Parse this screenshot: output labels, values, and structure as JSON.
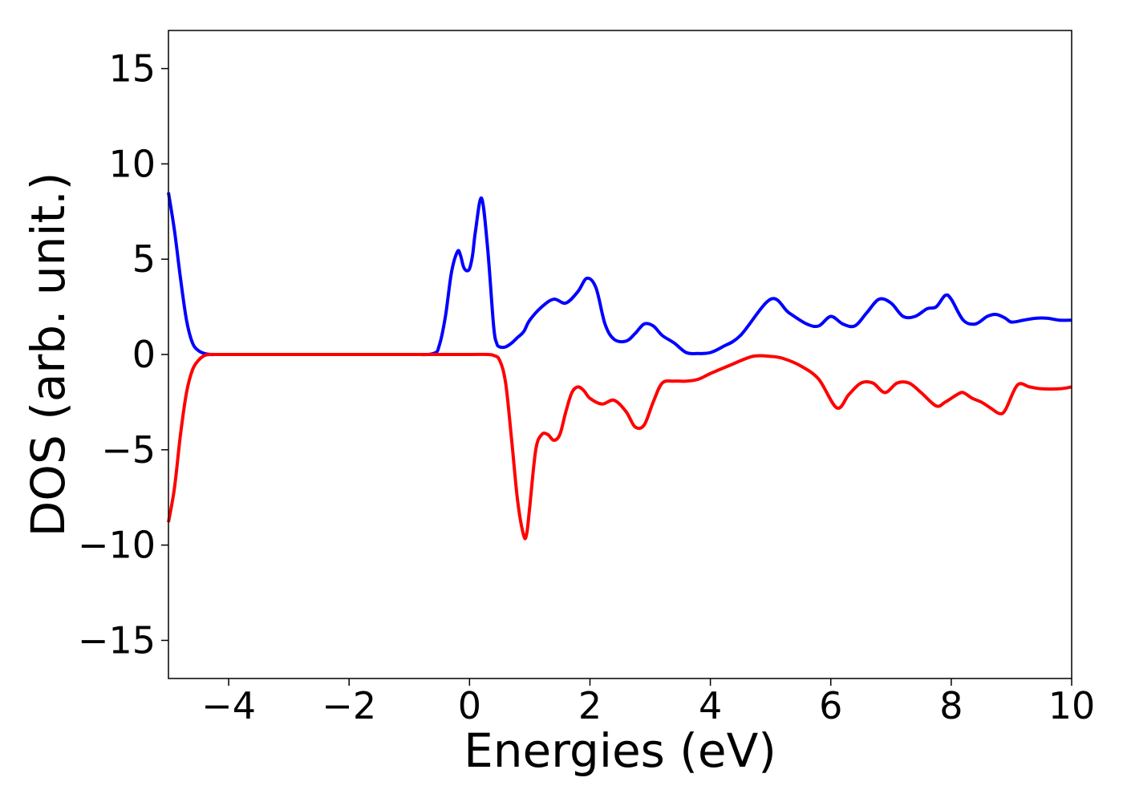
{
  "chart_data": {
    "type": "line",
    "title": "",
    "xlabel": "Energies (eV)",
    "ylabel": "DOS (arb. unit.)",
    "xlim": [
      -5,
      10
    ],
    "ylim": [
      -17,
      17
    ],
    "grid": false,
    "x_ticks": [
      -4,
      -2,
      0,
      2,
      4,
      6,
      8,
      10
    ],
    "x_tick_labels": [
      "−4",
      "−2",
      "0",
      "2",
      "4",
      "6",
      "8",
      "10"
    ],
    "y_ticks": [
      15,
      10,
      5,
      0,
      -5,
      -10,
      -15
    ],
    "y_tick_labels": [
      "15",
      "10",
      "5",
      "0",
      "−5",
      "−10",
      "−15"
    ],
    "series": [
      {
        "color": "#0000ff",
        "x": [
          -5.0,
          -4.9,
          -4.8,
          -4.7,
          -4.6,
          -4.5,
          -4.4,
          -4.3,
          -4.2,
          -4.0,
          -3.0,
          -2.0,
          -1.0,
          -0.6,
          -0.5,
          -0.4,
          -0.3,
          -0.2,
          -0.15,
          -0.1,
          -0.05,
          0.0,
          0.05,
          0.1,
          0.2,
          0.3,
          0.4,
          0.45,
          0.5,
          0.6,
          0.7,
          0.8,
          0.9,
          1.0,
          1.2,
          1.4,
          1.6,
          1.8,
          1.95,
          2.1,
          2.25,
          2.4,
          2.6,
          2.75,
          2.9,
          3.05,
          3.2,
          3.4,
          3.6,
          3.8,
          4.0,
          4.2,
          4.5,
          5.0,
          5.3,
          5.6,
          5.8,
          6.0,
          6.2,
          6.4,
          6.6,
          6.8,
          7.0,
          7.2,
          7.4,
          7.6,
          7.75,
          7.9,
          8.0,
          8.2,
          8.4,
          8.6,
          8.75,
          8.9,
          9.0,
          9.2,
          9.4,
          9.6,
          9.8,
          10.0
        ],
        "y": [
          8.5,
          6.5,
          4.0,
          1.8,
          0.6,
          0.2,
          0.05,
          0.0,
          0.0,
          0.0,
          0.0,
          0.0,
          0.0,
          0.05,
          0.5,
          2.0,
          4.3,
          5.4,
          5.2,
          4.6,
          4.4,
          4.5,
          5.2,
          6.5,
          8.2,
          5.6,
          1.5,
          0.6,
          0.4,
          0.4,
          0.6,
          0.9,
          1.2,
          1.8,
          2.5,
          2.9,
          2.7,
          3.3,
          4.0,
          3.5,
          1.6,
          0.8,
          0.7,
          1.1,
          1.6,
          1.5,
          1.0,
          0.6,
          0.1,
          0.05,
          0.1,
          0.4,
          1.0,
          2.9,
          2.2,
          1.6,
          1.5,
          2.0,
          1.6,
          1.5,
          2.2,
          2.9,
          2.7,
          2.0,
          2.0,
          2.4,
          2.5,
          3.1,
          2.9,
          1.8,
          1.6,
          2.0,
          2.1,
          1.9,
          1.7,
          1.8,
          1.9,
          1.9,
          1.8,
          1.8
        ]
      },
      {
        "color": "#ff0000",
        "x": [
          -5.0,
          -4.9,
          -4.8,
          -4.7,
          -4.6,
          -4.5,
          -4.4,
          -4.3,
          -4.2,
          -4.0,
          -3.0,
          -2.0,
          -1.0,
          0.0,
          0.3,
          0.4,
          0.5,
          0.6,
          0.7,
          0.8,
          0.9,
          0.95,
          1.0,
          1.1,
          1.2,
          1.3,
          1.4,
          1.5,
          1.6,
          1.7,
          1.8,
          1.9,
          2.0,
          2.2,
          2.4,
          2.6,
          2.75,
          2.9,
          3.05,
          3.2,
          3.4,
          3.6,
          3.8,
          4.0,
          4.3,
          4.7,
          5.0,
          5.2,
          5.5,
          5.8,
          6.1,
          6.3,
          6.5,
          6.7,
          6.9,
          7.1,
          7.3,
          7.5,
          7.75,
          7.9,
          8.1,
          8.2,
          8.35,
          8.5,
          8.65,
          8.8,
          8.9,
          9.1,
          9.3,
          9.5,
          9.8,
          10.0
        ],
        "y": [
          -8.8,
          -7.0,
          -4.2,
          -2.0,
          -0.8,
          -0.3,
          -0.05,
          0.0,
          0.0,
          0.0,
          0.0,
          0.0,
          0.0,
          0.0,
          0.0,
          -0.05,
          -0.3,
          -1.5,
          -4.5,
          -7.7,
          -9.5,
          -9.4,
          -8.0,
          -5.0,
          -4.2,
          -4.2,
          -4.5,
          -4.2,
          -3.0,
          -2.0,
          -1.7,
          -1.9,
          -2.3,
          -2.6,
          -2.4,
          -3.0,
          -3.8,
          -3.7,
          -2.5,
          -1.5,
          -1.4,
          -1.4,
          -1.3,
          -1.0,
          -0.6,
          -0.1,
          -0.1,
          -0.2,
          -0.6,
          -1.3,
          -2.8,
          -2.1,
          -1.5,
          -1.5,
          -2.0,
          -1.5,
          -1.5,
          -2.0,
          -2.7,
          -2.5,
          -2.1,
          -2.0,
          -2.3,
          -2.5,
          -2.8,
          -3.1,
          -2.9,
          -1.6,
          -1.7,
          -1.8,
          -1.8,
          -1.7
        ]
      }
    ]
  }
}
